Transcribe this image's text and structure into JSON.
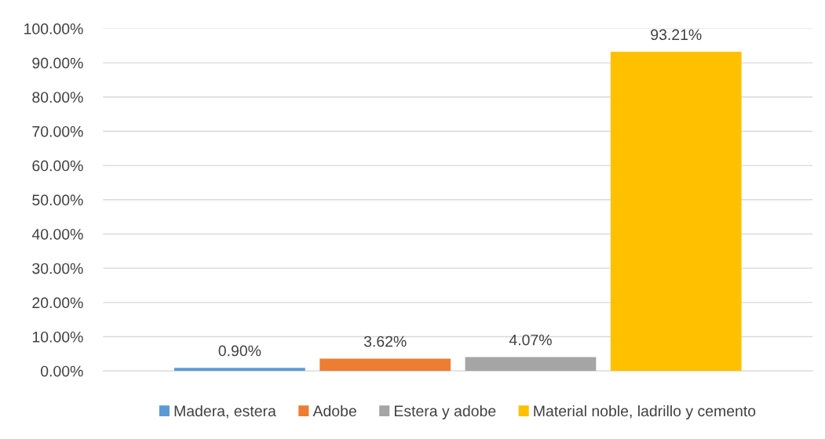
{
  "chart_data": {
    "type": "bar",
    "categories": [
      null
    ],
    "series": [
      {
        "name": "Madera, estera",
        "color": "#5b9bd5",
        "values": [
          0.9
        ],
        "value_labels": [
          "0.90%"
        ]
      },
      {
        "name": "Adobe",
        "color": "#ed7d31",
        "values": [
          3.62
        ],
        "value_labels": [
          "3.62%"
        ]
      },
      {
        "name": "Estera y adobe",
        "color": "#a5a5a5",
        "values": [
          4.07
        ],
        "value_labels": [
          "4.07%"
        ]
      },
      {
        "name": "Material noble, ladrillo y cemento",
        "color": "#ffc000",
        "values": [
          93.21
        ],
        "value_labels": [
          "93.21%"
        ]
      }
    ],
    "ylim": [
      0,
      100
    ],
    "yticks": [
      {
        "value": 0,
        "label": "0.00%"
      },
      {
        "value": 10,
        "label": "10.00%"
      },
      {
        "value": 20,
        "label": "20.00%"
      },
      {
        "value": 30,
        "label": "30.00%"
      },
      {
        "value": 40,
        "label": "40.00%"
      },
      {
        "value": 50,
        "label": "50.00%"
      },
      {
        "value": 60,
        "label": "60.00%"
      },
      {
        "value": 70,
        "label": "70.00%"
      },
      {
        "value": 80,
        "label": "80.00%"
      },
      {
        "value": 90,
        "label": "90.00%"
      },
      {
        "value": 100,
        "label": "100.00%"
      }
    ],
    "grid": "y",
    "legend": "bottom"
  }
}
